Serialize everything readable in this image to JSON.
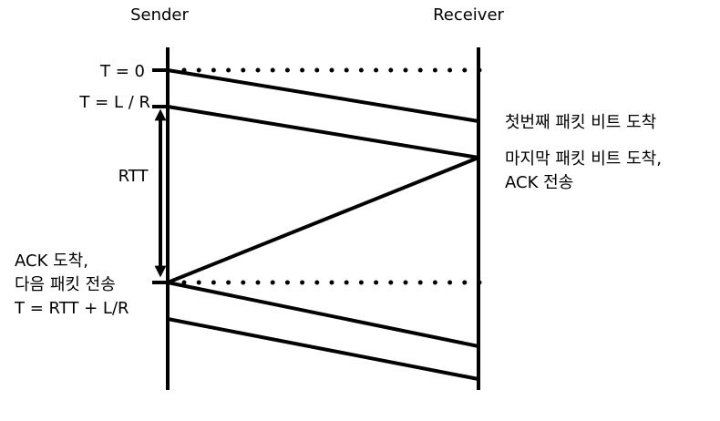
{
  "headers": {
    "sender": "Sender",
    "receiver": "Receiver"
  },
  "sender_labels": {
    "t0": "T = 0",
    "t_lr": "T = L / R",
    "rtt": "RTT",
    "ack_arrive_1": "ACK 도착,",
    "ack_arrive_2": "다음 패킷 전송",
    "ack_arrive_3": "T = RTT + L/R"
  },
  "receiver_labels": {
    "first_bit": "첫번째 패킷 비트 도착",
    "last_bit_1": "마지막 패킷 비트 도착,",
    "last_bit_2": "ACK 전송"
  }
}
